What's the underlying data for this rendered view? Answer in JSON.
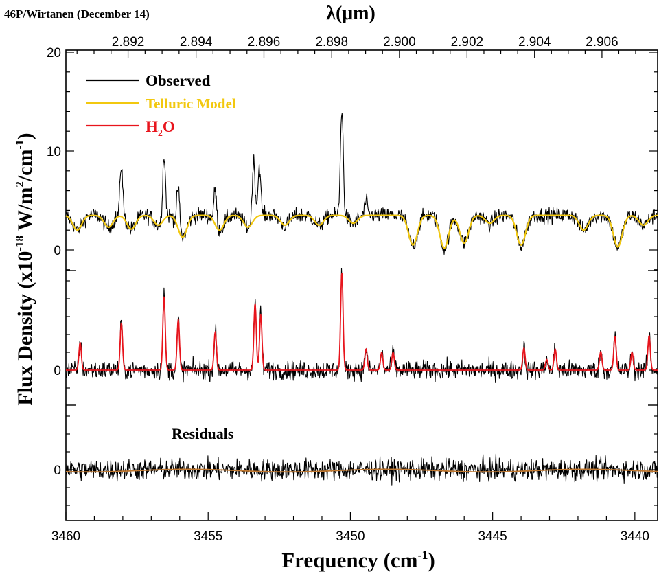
{
  "chart_data": {
    "type": "line",
    "corner_label": "46P/Wirtanen (December 14)",
    "top_axis_label": "λ(μm)",
    "top_ticks": [
      "2.892",
      "2.894",
      "2.896",
      "2.898",
      "2.900",
      "2.902",
      "2.904",
      "2.906"
    ],
    "bottom_axis_label": "Frequency (cm",
    "bottom_axis_label_sup": "-1",
    "bottom_axis_label_end": ")",
    "bottom_ticks": [
      3460,
      3455,
      3450,
      3445,
      3440
    ],
    "x_range": [
      3460,
      3439.2
    ],
    "y_label_parts": {
      "a": "Flux Density (x10",
      "b": "-18",
      "c": " W/m",
      "d": "2",
      "e": "/cm",
      "f": "-1",
      "g": ")"
    },
    "y_tick_labels": {
      "upper": [
        "20",
        "10",
        "0"
      ],
      "middle": [
        "0"
      ],
      "lower": [
        "0"
      ]
    },
    "legend": [
      {
        "label": "Observed",
        "color": "#000000"
      },
      {
        "label": "Telluric Model",
        "color": "#f2c80f"
      },
      {
        "label": "H",
        "sub": "2",
        "tail": "O",
        "color": "#e8141c"
      }
    ],
    "residuals_label": "Residuals",
    "panels": {
      "upper": {
        "baseline": 3.5,
        "h2o_lines": [
          {
            "freq": 3458.05,
            "amp": 5.2
          },
          {
            "freq": 3456.55,
            "amp": 6.5
          },
          {
            "freq": 3456.05,
            "amp": 4.2
          },
          {
            "freq": 3454.75,
            "amp": 3.5
          },
          {
            "freq": 3453.4,
            "amp": 6.0
          },
          {
            "freq": 3453.2,
            "amp": 5.0
          },
          {
            "freq": 3450.3,
            "amp": 10.8
          },
          {
            "freq": 3449.45,
            "amp": 1.4
          }
        ],
        "telluric_dips": [
          {
            "freq": 3459.6,
            "depth": 1.5
          },
          {
            "freq": 3458.5,
            "depth": 1.2
          },
          {
            "freq": 3457.7,
            "depth": 1.4
          },
          {
            "freq": 3456.75,
            "depth": 1.0
          },
          {
            "freq": 3455.9,
            "depth": 2.2
          },
          {
            "freq": 3454.6,
            "depth": 1.5
          },
          {
            "freq": 3453.6,
            "depth": 1.2
          },
          {
            "freq": 3452.3,
            "depth": 1.0
          },
          {
            "freq": 3451.1,
            "depth": 1.0
          },
          {
            "freq": 3449.9,
            "depth": 0.8
          },
          {
            "freq": 3447.8,
            "depth": 3.0
          },
          {
            "freq": 3446.7,
            "depth": 3.3
          },
          {
            "freq": 3446.0,
            "depth": 2.8
          },
          {
            "freq": 3445.1,
            "depth": 0.8
          },
          {
            "freq": 3444.0,
            "depth": 3.0
          },
          {
            "freq": 3441.8,
            "depth": 1.5
          },
          {
            "freq": 3440.6,
            "depth": 3.2
          },
          {
            "freq": 3439.7,
            "depth": 1.0
          }
        ]
      },
      "middle": {
        "baseline": 0,
        "h2o_lines": [
          {
            "freq": 3459.5,
            "amp": 3.1
          },
          {
            "freq": 3458.05,
            "amp": 5.3
          },
          {
            "freq": 3456.55,
            "amp": 8.2
          },
          {
            "freq": 3456.05,
            "amp": 5.7
          },
          {
            "freq": 3454.75,
            "amp": 4.3
          },
          {
            "freq": 3453.35,
            "amp": 7.5
          },
          {
            "freq": 3453.15,
            "amp": 6.2
          },
          {
            "freq": 3450.3,
            "amp": 11.0
          },
          {
            "freq": 3449.45,
            "amp": 2.4
          },
          {
            "freq": 3448.9,
            "amp": 2.0
          },
          {
            "freq": 3448.5,
            "amp": 2.0
          },
          {
            "freq": 3443.9,
            "amp": 2.5
          },
          {
            "freq": 3443.1,
            "amp": 1.2
          },
          {
            "freq": 3442.8,
            "amp": 2.4
          },
          {
            "freq": 3441.2,
            "amp": 2.1
          },
          {
            "freq": 3440.7,
            "amp": 3.8
          },
          {
            "freq": 3440.1,
            "amp": 2.0
          },
          {
            "freq": 3439.5,
            "amp": 3.9
          }
        ]
      },
      "lower": {
        "baseline": 0
      }
    }
  }
}
